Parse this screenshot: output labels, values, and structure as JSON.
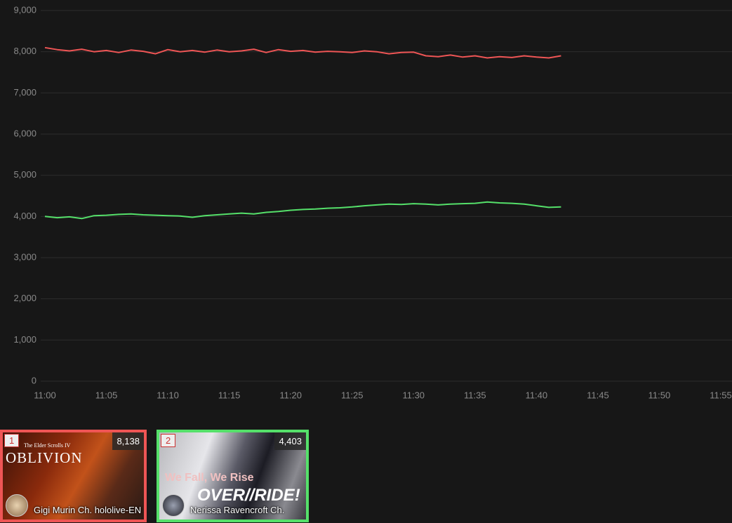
{
  "chart_data": {
    "type": "line",
    "x": [
      "11:00",
      "11:01",
      "11:02",
      "11:03",
      "11:04",
      "11:05",
      "11:06",
      "11:07",
      "11:08",
      "11:09",
      "11:10",
      "11:11",
      "11:12",
      "11:13",
      "11:14",
      "11:15",
      "11:16",
      "11:17",
      "11:18",
      "11:19",
      "11:20",
      "11:21",
      "11:22",
      "11:23",
      "11:24",
      "11:25",
      "11:26",
      "11:27",
      "11:28",
      "11:29",
      "11:30",
      "11:31",
      "11:32",
      "11:33",
      "11:34",
      "11:35",
      "11:36",
      "11:37",
      "11:38",
      "11:39",
      "11:40",
      "11:41",
      "11:42"
    ],
    "series": [
      {
        "name": "Gigi Murin Ch. hololive-EN",
        "color": "#ee5555",
        "values": [
          8100,
          8050,
          8020,
          8060,
          8000,
          8030,
          7980,
          8040,
          8010,
          7950,
          8050,
          8000,
          8030,
          7990,
          8040,
          8000,
          8020,
          8060,
          7980,
          8050,
          8010,
          8030,
          7990,
          8010,
          8000,
          7980,
          8020,
          8000,
          7950,
          7980,
          7990,
          7900,
          7880,
          7920,
          7870,
          7900,
          7850,
          7880,
          7860,
          7900,
          7870,
          7850,
          7900
        ]
      },
      {
        "name": "Nerissa Ravencroft Ch.",
        "color": "#55e06a",
        "values": [
          4000,
          3970,
          3990,
          3950,
          4020,
          4030,
          4050,
          4060,
          4040,
          4030,
          4020,
          4010,
          3980,
          4020,
          4040,
          4060,
          4080,
          4060,
          4100,
          4120,
          4150,
          4170,
          4180,
          4200,
          4210,
          4230,
          4260,
          4280,
          4300,
          4290,
          4310,
          4300,
          4280,
          4300,
          4310,
          4320,
          4350,
          4330,
          4320,
          4300,
          4260,
          4220,
          4230
        ]
      }
    ],
    "xlim": [
      "11:00",
      "11:55"
    ],
    "xticks": [
      "11:00",
      "11:05",
      "11:10",
      "11:15",
      "11:20",
      "11:25",
      "11:30",
      "11:35",
      "11:40",
      "11:45",
      "11:50",
      "11:55"
    ],
    "ylim": [
      0,
      9000
    ],
    "yticks": [
      0,
      {
        "value": 1000,
        "label": "1,000"
      },
      {
        "value": 2000,
        "label": "2,000"
      },
      {
        "value": 3000,
        "label": "3,000"
      },
      {
        "value": 4000,
        "label": "4,000"
      },
      {
        "value": 5000,
        "label": "5,000"
      },
      {
        "value": 6000,
        "label": "6,000"
      },
      {
        "value": 7000,
        "label": "7,000"
      },
      {
        "value": 8000,
        "label": "8,000"
      },
      {
        "value": 9000,
        "label": "9,000"
      }
    ],
    "grid": true
  },
  "cards": [
    {
      "rank": "1",
      "viewers": "8,138",
      "name": "Gigi Murin Ch. hololive-EN",
      "thumbnail_text": [
        "The Elder Scrolls IV",
        "OBLIVION"
      ]
    },
    {
      "rank": "2",
      "viewers": "4,403",
      "name": "Nerissa Ravencroft Ch.",
      "thumbnail_text": [
        "We Fall, We Rise",
        "OVER//RIDE!"
      ]
    }
  ]
}
